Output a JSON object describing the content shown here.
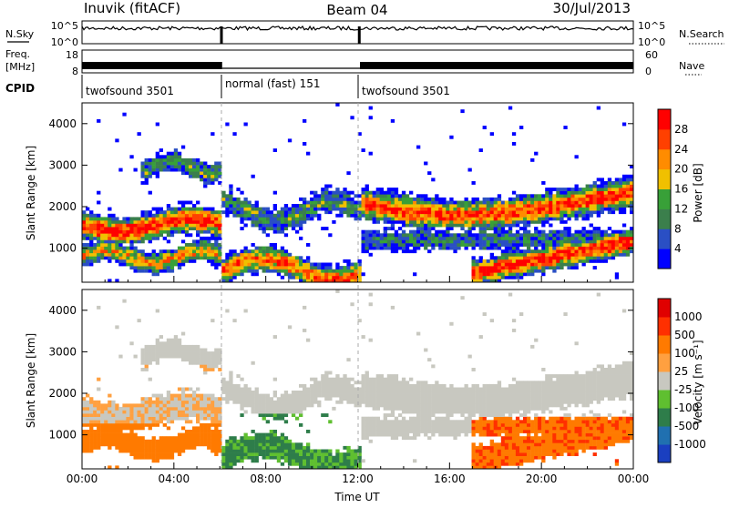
{
  "header": {
    "station": "Inuvik (fitACF)",
    "beam": "Beam 04",
    "date": "30/Jul/2013"
  },
  "nsky_panel": {
    "label": "N.Sky",
    "right_label": "N.Search",
    "left_ticks": [
      "10^5",
      "10^0"
    ],
    "right_ticks": [
      "10^5",
      "10^0"
    ]
  },
  "freq_panel": {
    "label_line1": "Freq.",
    "label_line2": "[MHz]",
    "right_label": "Nave",
    "left_ticks": [
      "18",
      "8"
    ],
    "right_ticks": [
      "60",
      "0"
    ]
  },
  "cpid_panel": {
    "label": "CPID",
    "segments": [
      {
        "start": 0,
        "end": 6.1,
        "text": "twofsound 3501"
      },
      {
        "start": 6.1,
        "end": 12.1,
        "text": "normal (fast) 151"
      },
      {
        "start": 12.1,
        "end": 24,
        "text": "twofsound 3501"
      }
    ]
  },
  "chart_data": [
    {
      "type": "heatmap",
      "ylabel": "Slant Range [km]",
      "xlabel": "",
      "x_range": [
        0,
        24
      ],
      "ylim": [
        180,
        4500
      ],
      "y_ticks": [
        1000,
        2000,
        3000,
        4000
      ],
      "colorbar": {
        "label": "Power [dB]",
        "ticks": [
          "4",
          "8",
          "12",
          "16",
          "20",
          "24",
          "28"
        ],
        "colors": [
          "#0000ff",
          "#2a4fc4",
          "#3b7f4c",
          "#38a038",
          "#f0c000",
          "#ff8c00",
          "#ff4000",
          "#ff0000"
        ]
      }
    },
    {
      "type": "heatmap",
      "ylabel": "Slant Range [km]",
      "xlabel": "Time UT",
      "x_range": [
        0,
        24
      ],
      "ylim": [
        180,
        4500
      ],
      "y_ticks": [
        1000,
        2000,
        3000,
        4000
      ],
      "x_ticks": [
        "00:00",
        "04:00",
        "08:00",
        "12:00",
        "16:00",
        "20:00",
        "00:00"
      ],
      "colorbar": {
        "label": "Velocity [m s⁻¹]",
        "ticks": [
          "1000",
          "500",
          "100",
          "25",
          "-25",
          "-100",
          "-500",
          "-1000"
        ],
        "colors": [
          "#1a3fc0",
          "#2070b0",
          "#2e7d4a",
          "#5fbf30",
          "#c8c8c0",
          "#ffa040",
          "#ff7a00",
          "#ff3000",
          "#e00000"
        ]
      }
    }
  ]
}
